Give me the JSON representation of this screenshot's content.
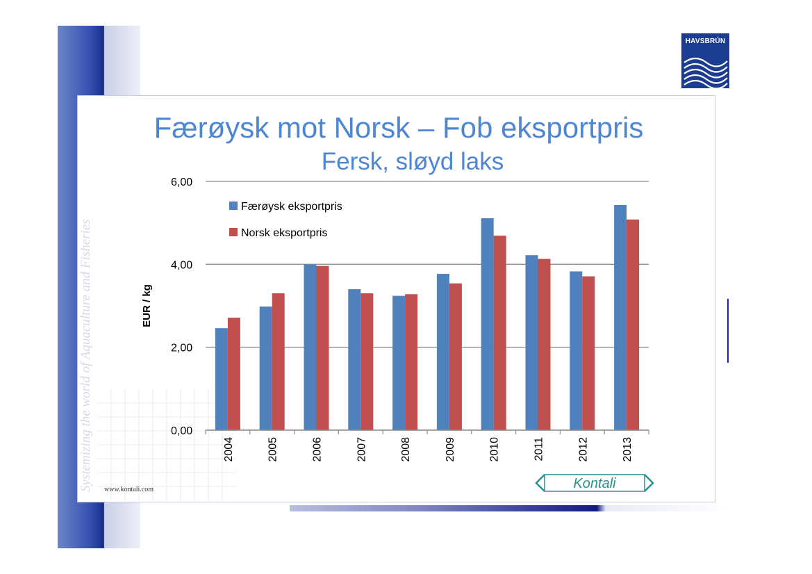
{
  "slide": {
    "title": "Færøysk mot Norsk – Fob eksportpris",
    "subtitle": "Fersk, sløyd laks",
    "logo_text": "HAVSBRÚN",
    "watermark": "Systemizing the world of Aquaculture and Fisheries",
    "url": "www.kontali.com",
    "kontali_logo": "Kontali"
  },
  "colors": {
    "series_1": "#4f81bd",
    "series_2": "#c0504d",
    "title": "#4f86d2",
    "gridline": "#8c8c8c"
  },
  "chart_data": {
    "type": "bar",
    "title": "",
    "xlabel": "",
    "ylabel": "EUR / kg",
    "categories": [
      "2004",
      "2005",
      "2006",
      "2007",
      "2008",
      "2009",
      "2010",
      "2011",
      "2012",
      "2013"
    ],
    "series": [
      {
        "name": "Færøysk eksportpris",
        "values": [
          2.46,
          2.98,
          4.0,
          3.4,
          3.24,
          3.77,
          5.11,
          4.22,
          3.83,
          5.43
        ]
      },
      {
        "name": "Norsk eksportpris",
        "values": [
          2.71,
          3.3,
          3.96,
          3.3,
          3.28,
          3.54,
          4.69,
          4.13,
          3.71,
          5.08
        ]
      }
    ],
    "ylim": [
      0,
      6
    ],
    "yticks": [
      "0,00",
      "2,00",
      "4,00",
      "6,00"
    ],
    "ytick_values": [
      0,
      2,
      4,
      6
    ],
    "grid": true,
    "legend_position": "top-left"
  }
}
